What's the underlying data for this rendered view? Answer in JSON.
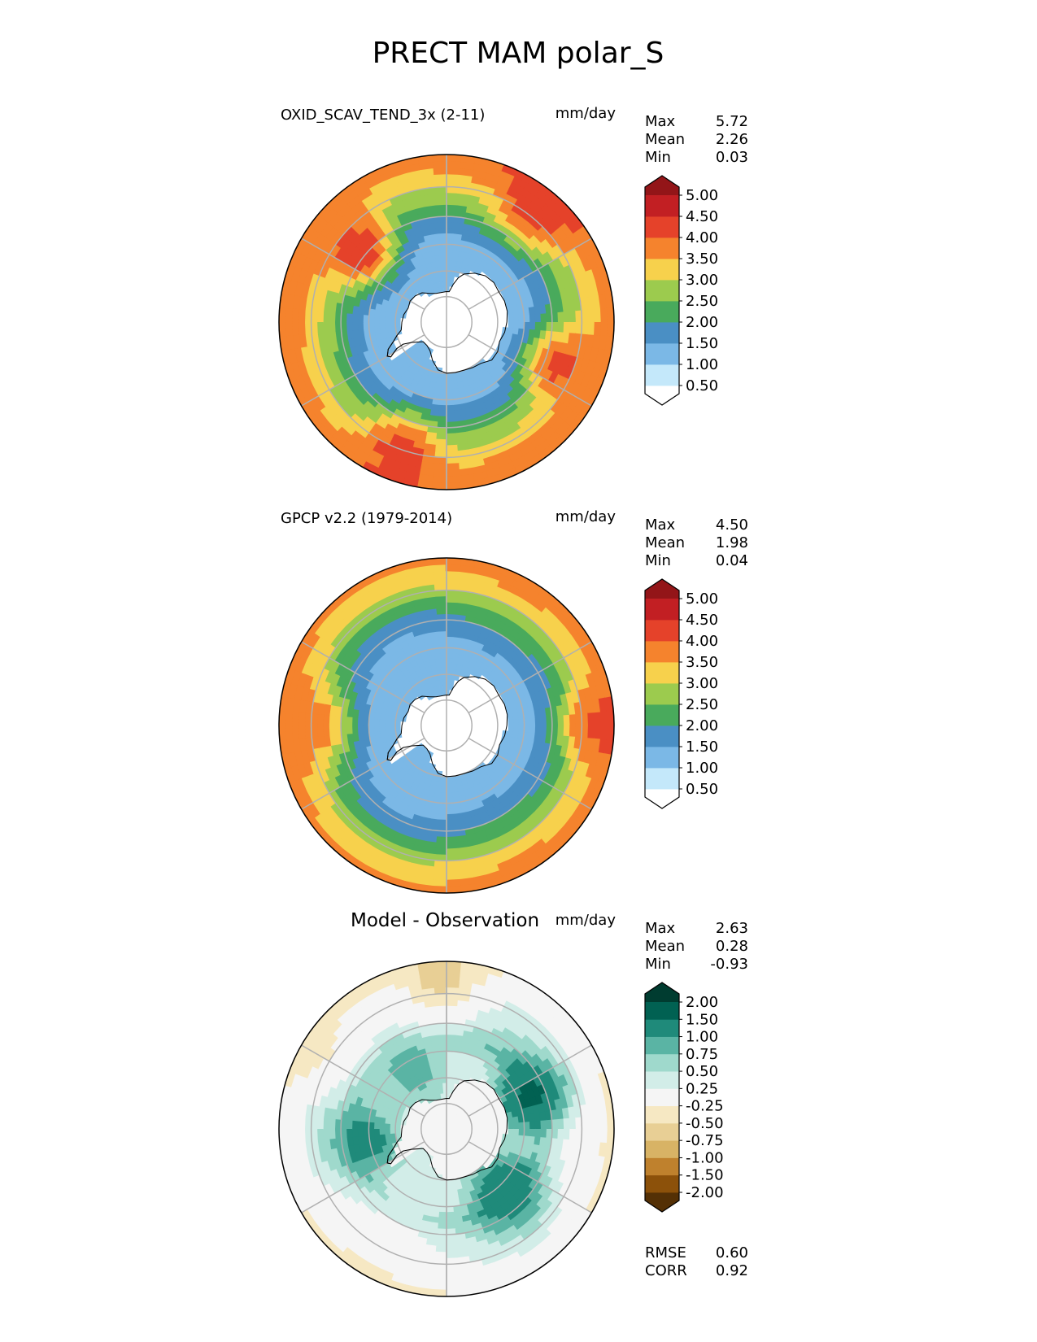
{
  "figure": {
    "title": "PRECT MAM polar_S"
  },
  "chart_data": [
    {
      "type": "heatmap",
      "projection": "south-polar-stereographic",
      "title": "OXID_SCAV_TEND_3x (2-11)",
      "units": "mm/day",
      "stats": [
        {
          "label": "Max",
          "value": "5.72"
        },
        {
          "label": "Mean",
          "value": "2.26"
        },
        {
          "label": "Min",
          "value": "0.03"
        }
      ],
      "colorbar": {
        "levels": [
          "0.50",
          "1.00",
          "1.50",
          "2.00",
          "2.50",
          "3.00",
          "3.50",
          "4.00",
          "4.50",
          "5.00"
        ],
        "colors": [
          "#ffffff",
          "#c4e8fa",
          "#7bb8e6",
          "#4a8fc4",
          "#49aa5c",
          "#9ccb4e",
          "#f7d14c",
          "#f5832d",
          "#e5422a",
          "#c21f23",
          "#931518"
        ],
        "extend": "both"
      },
      "field": {
        "rings": [
          {
            "lat": -60,
            "value": 1.2
          },
          {
            "lat": -52,
            "value": 1.8
          },
          {
            "lat": -45,
            "value": 2.6
          },
          {
            "lat": -38,
            "value": 3.3
          },
          {
            "lat": -30,
            "value": 3.9
          }
        ],
        "hotspots": [
          {
            "lon": -130,
            "lat": -48,
            "value": 4.6
          },
          {
            "lon": 70,
            "lat": -45,
            "value": 4.3
          },
          {
            "lon": -20,
            "lat": -40,
            "value": 4.4
          },
          {
            "lon": 140,
            "lat": -35,
            "value": 4.3
          }
        ]
      }
    },
    {
      "type": "heatmap",
      "projection": "south-polar-stereographic",
      "title": "GPCP v2.2 (1979-2014)",
      "units": "mm/day",
      "stats": [
        {
          "label": "Max",
          "value": "4.50"
        },
        {
          "label": "Mean",
          "value": "1.98"
        },
        {
          "label": "Min",
          "value": "0.04"
        }
      ],
      "colorbar": {
        "levels": [
          "0.50",
          "1.00",
          "1.50",
          "2.00",
          "2.50",
          "3.00",
          "3.50",
          "4.00",
          "4.50",
          "5.00"
        ],
        "colors": [
          "#ffffff",
          "#c4e8fa",
          "#7bb8e6",
          "#4a8fc4",
          "#49aa5c",
          "#9ccb4e",
          "#f7d14c",
          "#f5832d",
          "#e5422a",
          "#c21f23",
          "#931518"
        ],
        "extend": "both"
      },
      "field": {
        "rings": [
          {
            "lat": -60,
            "value": 1.2
          },
          {
            "lat": -52,
            "value": 1.7
          },
          {
            "lat": -45,
            "value": 2.2
          },
          {
            "lat": -38,
            "value": 3.2
          },
          {
            "lat": -30,
            "value": 3.7
          }
        ],
        "hotspots": [
          {
            "lon": 90,
            "lat": -35,
            "value": 4.3
          },
          {
            "lon": -90,
            "lat": -40,
            "value": 3.8
          }
        ]
      }
    },
    {
      "type": "heatmap",
      "projection": "south-polar-stereographic",
      "title": "Model - Observation",
      "units": "mm/day",
      "stats": [
        {
          "label": "Max",
          "value": "2.63"
        },
        {
          "label": "Mean",
          "value": "0.28"
        },
        {
          "label": "Min",
          "value": "-0.93"
        }
      ],
      "extra_stats": [
        {
          "label": "RMSE",
          "value": "0.60"
        },
        {
          "label": "CORR",
          "value": "0.92"
        }
      ],
      "colorbar": {
        "levels": [
          "-2.00",
          "-1.50",
          "-1.00",
          "-0.75",
          "-0.50",
          "-0.25",
          "0.25",
          "0.50",
          "0.75",
          "1.00",
          "1.50",
          "2.00"
        ],
        "colors": [
          "#543005",
          "#8c510a",
          "#bf812d",
          "#d8b365",
          "#e8cf95",
          "#f6e8c3",
          "#f5f5f5",
          "#d2ede8",
          "#9fd9cc",
          "#5ab4a4",
          "#1f8a7a",
          "#016152",
          "#003c30"
        ],
        "extend": "both"
      },
      "field": {
        "rings": [
          {
            "lat": -62,
            "value": 0.3
          },
          {
            "lat": -55,
            "value": 0.6
          },
          {
            "lat": -48,
            "value": 0.35
          },
          {
            "lat": -38,
            "value": 0.1
          },
          {
            "lat": -30,
            "value": -0.3
          }
        ],
        "hotspots": [
          {
            "lon": 110,
            "lat": -55,
            "value": 1.7
          },
          {
            "lon": 45,
            "lat": -58,
            "value": 1.4
          },
          {
            "lon": -80,
            "lat": -60,
            "value": 1.1
          },
          {
            "lon": -150,
            "lat": -62,
            "value": 1.0
          },
          {
            "lon": 180,
            "lat": -35,
            "value": -0.6
          },
          {
            "lon": -120,
            "lat": -32,
            "value": -0.4
          }
        ]
      }
    }
  ]
}
